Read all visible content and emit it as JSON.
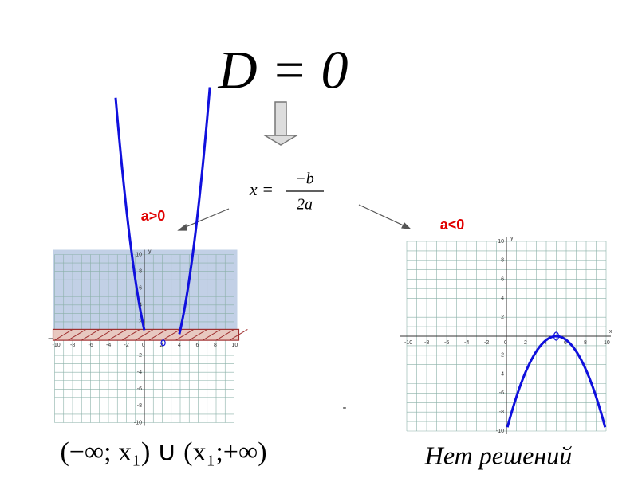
{
  "title": "D = 0",
  "formula": {
    "lhs": "x =",
    "numerator": "−b",
    "denominator": "2a"
  },
  "left": {
    "label": "a>0",
    "answer": "(−∞; x₁) ∪ (x₁;+∞)",
    "xticks": [
      -10,
      -8,
      -6,
      -4,
      -2,
      0,
      2,
      4,
      6,
      8,
      10
    ],
    "yticks": [
      10,
      8,
      6,
      4,
      2,
      -2,
      -4,
      -6,
      -8,
      -10
    ],
    "y_axis": "y"
  },
  "right": {
    "label": "a<0",
    "answer": "Нет решений",
    "xticks": [
      -10,
      -8,
      -6,
      -4,
      -2,
      0,
      2,
      4,
      6,
      8,
      10
    ],
    "yticks": [
      10,
      8,
      6,
      4,
      2,
      -2,
      -4,
      -6,
      -8,
      -10
    ],
    "y_axis": "y",
    "x_axis": "x"
  },
  "note": "-"
}
